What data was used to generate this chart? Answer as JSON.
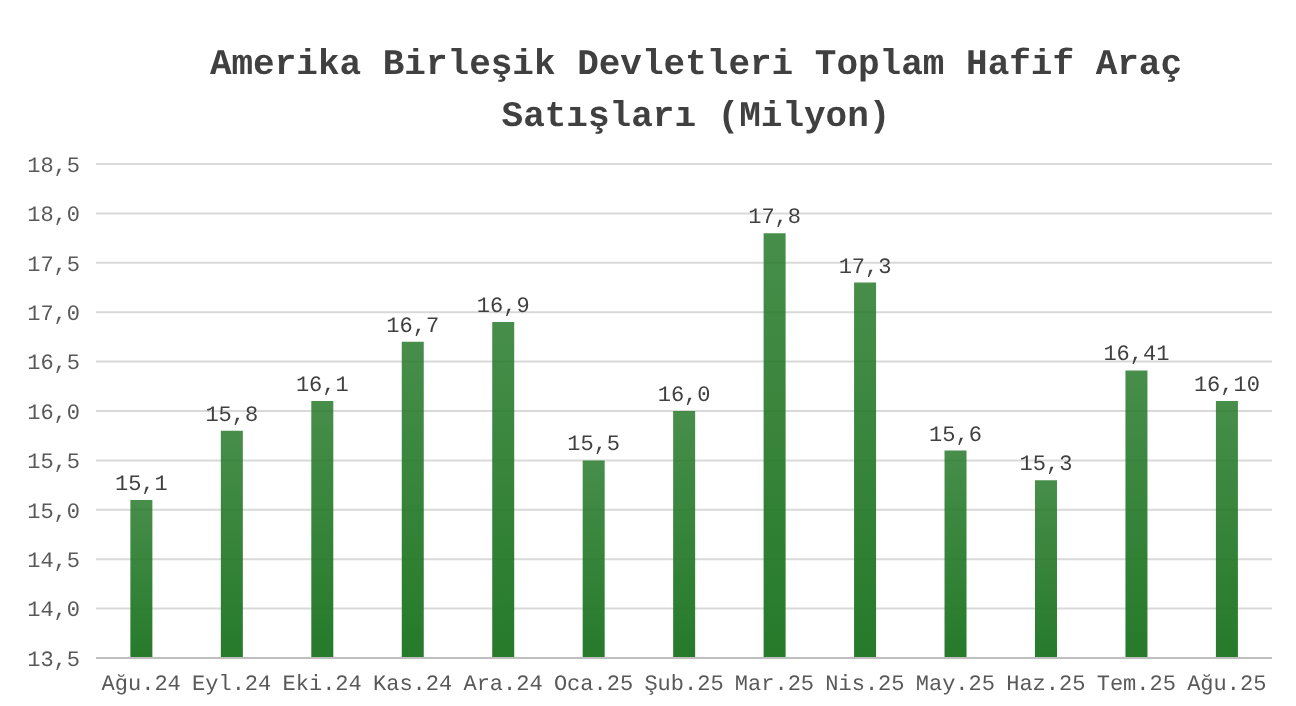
{
  "chart_data": {
    "type": "bar",
    "title": "Amerika Birleşik Devletleri Toplam Hafif Araç Satışları (Milyon)",
    "categories": [
      "Ağu.24",
      "Eyl.24",
      "Eki.24",
      "Kas.24",
      "Ara.24",
      "Oca.25",
      "Şub.25",
      "Mar.25",
      "Nis.25",
      "May.25",
      "Haz.25",
      "Tem.25",
      "Ağu.25"
    ],
    "values": [
      15.1,
      15.8,
      16.1,
      16.7,
      16.9,
      15.5,
      16.0,
      17.8,
      17.3,
      15.6,
      15.3,
      16.41,
      16.1
    ],
    "value_labels": [
      "15,1",
      "15,8",
      "16,1",
      "16,7",
      "16,9",
      "15,5",
      "16,0",
      "17,8",
      "17,3",
      "15,6",
      "15,3",
      "16,41",
      "16,10"
    ],
    "color": "#267a2a",
    "ylim": [
      13.5,
      18.5
    ],
    "yticks": [
      {
        "value": 13.5,
        "label": "13,5"
      },
      {
        "value": 14,
        "label": "14,0"
      },
      {
        "value": 14.5,
        "label": "14,5"
      },
      {
        "value": 15,
        "label": "15,0"
      },
      {
        "value": 15.5,
        "label": "15,5"
      },
      {
        "value": 16,
        "label": "16,0"
      },
      {
        "value": 16.5,
        "label": "16,5"
      },
      {
        "value": 17,
        "label": "17,0"
      },
      {
        "value": 17.5,
        "label": "17,5"
      },
      {
        "value": 18,
        "label": "18,0"
      },
      {
        "value": 18.5,
        "label": "18,5"
      }
    ],
    "grid": "y"
  }
}
